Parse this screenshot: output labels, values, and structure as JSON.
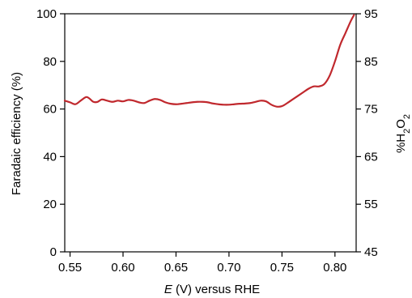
{
  "chart_data": {
    "type": "line",
    "title": "",
    "xlabel_italic": "E",
    "xlabel_rest": " (V) versus  RHE",
    "ylabel": "Faradaic efficiency (%)",
    "y2label": {
      "prefix": "%H",
      "sub1": "2",
      "mid": "O",
      "sub2": "2"
    },
    "xlim": [
      0.545,
      0.82
    ],
    "ylim": [
      0,
      100
    ],
    "y2lim": [
      45,
      95
    ],
    "xticks": [
      0.55,
      0.6,
      0.65,
      0.7,
      0.75,
      0.8
    ],
    "xtick_labels": [
      "0.55",
      "0.60",
      "0.65",
      "0.70",
      "0.75",
      "0.80"
    ],
    "yticks": [
      0,
      20,
      40,
      60,
      80,
      100
    ],
    "ytick_labels": [
      "0",
      "20",
      "40",
      "60",
      "80",
      "100"
    ],
    "y2ticks": [
      45,
      55,
      65,
      75,
      85,
      95
    ],
    "y2tick_labels": [
      "45",
      "55",
      "65",
      "75",
      "85",
      "95"
    ],
    "grid": false,
    "series": [
      {
        "color": "#c0282d",
        "x": [
          0.545,
          0.55,
          0.555,
          0.56,
          0.565,
          0.568,
          0.572,
          0.576,
          0.58,
          0.585,
          0.59,
          0.595,
          0.6,
          0.605,
          0.61,
          0.615,
          0.62,
          0.625,
          0.63,
          0.635,
          0.64,
          0.645,
          0.65,
          0.655,
          0.66,
          0.665,
          0.67,
          0.675,
          0.68,
          0.685,
          0.69,
          0.695,
          0.7,
          0.705,
          0.71,
          0.715,
          0.72,
          0.725,
          0.73,
          0.735,
          0.74,
          0.745,
          0.75,
          0.755,
          0.76,
          0.765,
          0.77,
          0.775,
          0.78,
          0.785,
          0.79,
          0.795,
          0.8,
          0.805,
          0.81,
          0.815,
          0.818
        ],
        "y": [
          63.5,
          62.8,
          62.0,
          63.5,
          65.0,
          64.5,
          63.0,
          63.0,
          64.0,
          63.5,
          63.0,
          63.5,
          63.2,
          63.8,
          63.5,
          62.8,
          62.5,
          63.5,
          64.2,
          63.8,
          62.8,
          62.2,
          62.0,
          62.2,
          62.5,
          62.8,
          63.0,
          63.0,
          62.8,
          62.3,
          62.0,
          61.8,
          61.8,
          62.0,
          62.2,
          62.3,
          62.5,
          63.0,
          63.5,
          63.2,
          61.8,
          61.0,
          61.2,
          62.5,
          64.0,
          65.5,
          67.0,
          68.5,
          69.5,
          69.5,
          70.5,
          74.0,
          80.0,
          87.0,
          92.0,
          97.0,
          99.5
        ]
      }
    ]
  }
}
